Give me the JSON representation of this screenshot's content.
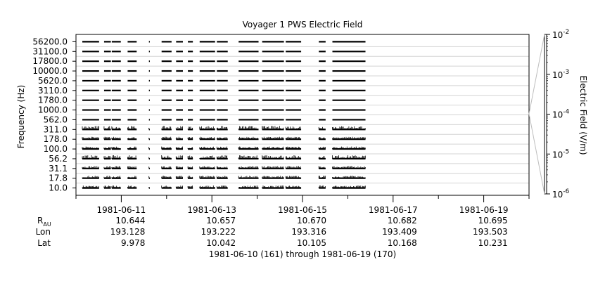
{
  "chart_data": {
    "type": "heatmap",
    "title": "Voyager 1 PWS Electric Field",
    "ylabel": "Frequency (Hz)",
    "colorbar_label": "Electric Field (V/m)",
    "colorbar_ticks": [
      {
        "base": "10",
        "exp": "-2"
      },
      {
        "base": "10",
        "exp": "-3"
      },
      {
        "base": "10",
        "exp": "-4"
      },
      {
        "base": "10",
        "exp": "-5"
      },
      {
        "base": "10",
        "exp": "-6"
      }
    ],
    "colorbar_range": [
      1e-06,
      0.01
    ],
    "colorbar_scale": "log",
    "xlim_days": [
      161,
      171
    ],
    "channels": [
      "10.0",
      "17.8",
      "31.1",
      "56.2",
      "100.0",
      "178.0",
      "311.0",
      "562.0",
      "1000.0",
      "1780.0",
      "3110.0",
      "5620.0",
      "10000.0",
      "17800.0",
      "31100.0",
      "56200.0"
    ],
    "channel_count": 16,
    "coverage_intervals": [
      [
        161.14,
        161.51
      ],
      [
        161.62,
        161.77
      ],
      [
        161.79,
        161.99
      ],
      [
        162.14,
        162.34
      ],
      [
        162.61,
        162.63
      ],
      [
        162.89,
        163.11
      ],
      [
        163.21,
        163.36
      ],
      [
        163.47,
        163.58
      ],
      [
        163.73,
        164.07
      ],
      [
        164.11,
        164.35
      ],
      [
        164.59,
        165.03
      ],
      [
        165.11,
        165.59
      ],
      [
        165.63,
        165.97
      ],
      [
        166.36,
        166.51
      ],
      [
        166.66,
        167.39
      ]
    ],
    "x_ticks": [
      "1981-06-11",
      "1981-06-13",
      "1981-06-15",
      "1981-06-17",
      "1981-06-19"
    ],
    "x_tick_days": [
      162,
      164,
      166,
      168,
      170
    ],
    "minor_tick_days": [
      161,
      163,
      165,
      167,
      169,
      171
    ],
    "ephemeris": {
      "rows": [
        {
          "label": "R",
          "sub": "AU",
          "values": [
            "10.644",
            "10.657",
            "10.670",
            "10.682",
            "10.695"
          ]
        },
        {
          "label": "Lon",
          "sub": "",
          "values": [
            "193.128",
            "193.222",
            "193.316",
            "193.409",
            "193.503"
          ]
        },
        {
          "label": "Lat",
          "sub": "",
          "values": [
            "9.978",
            "10.042",
            "10.105",
            "10.168",
            "10.231"
          ]
        }
      ]
    },
    "xlabel": "1981-06-10 (161) through 1981-06-19 (170)"
  },
  "colors": {
    "ink": "#000000",
    "grid": "#d4d4d4",
    "background": "#ffffff"
  }
}
